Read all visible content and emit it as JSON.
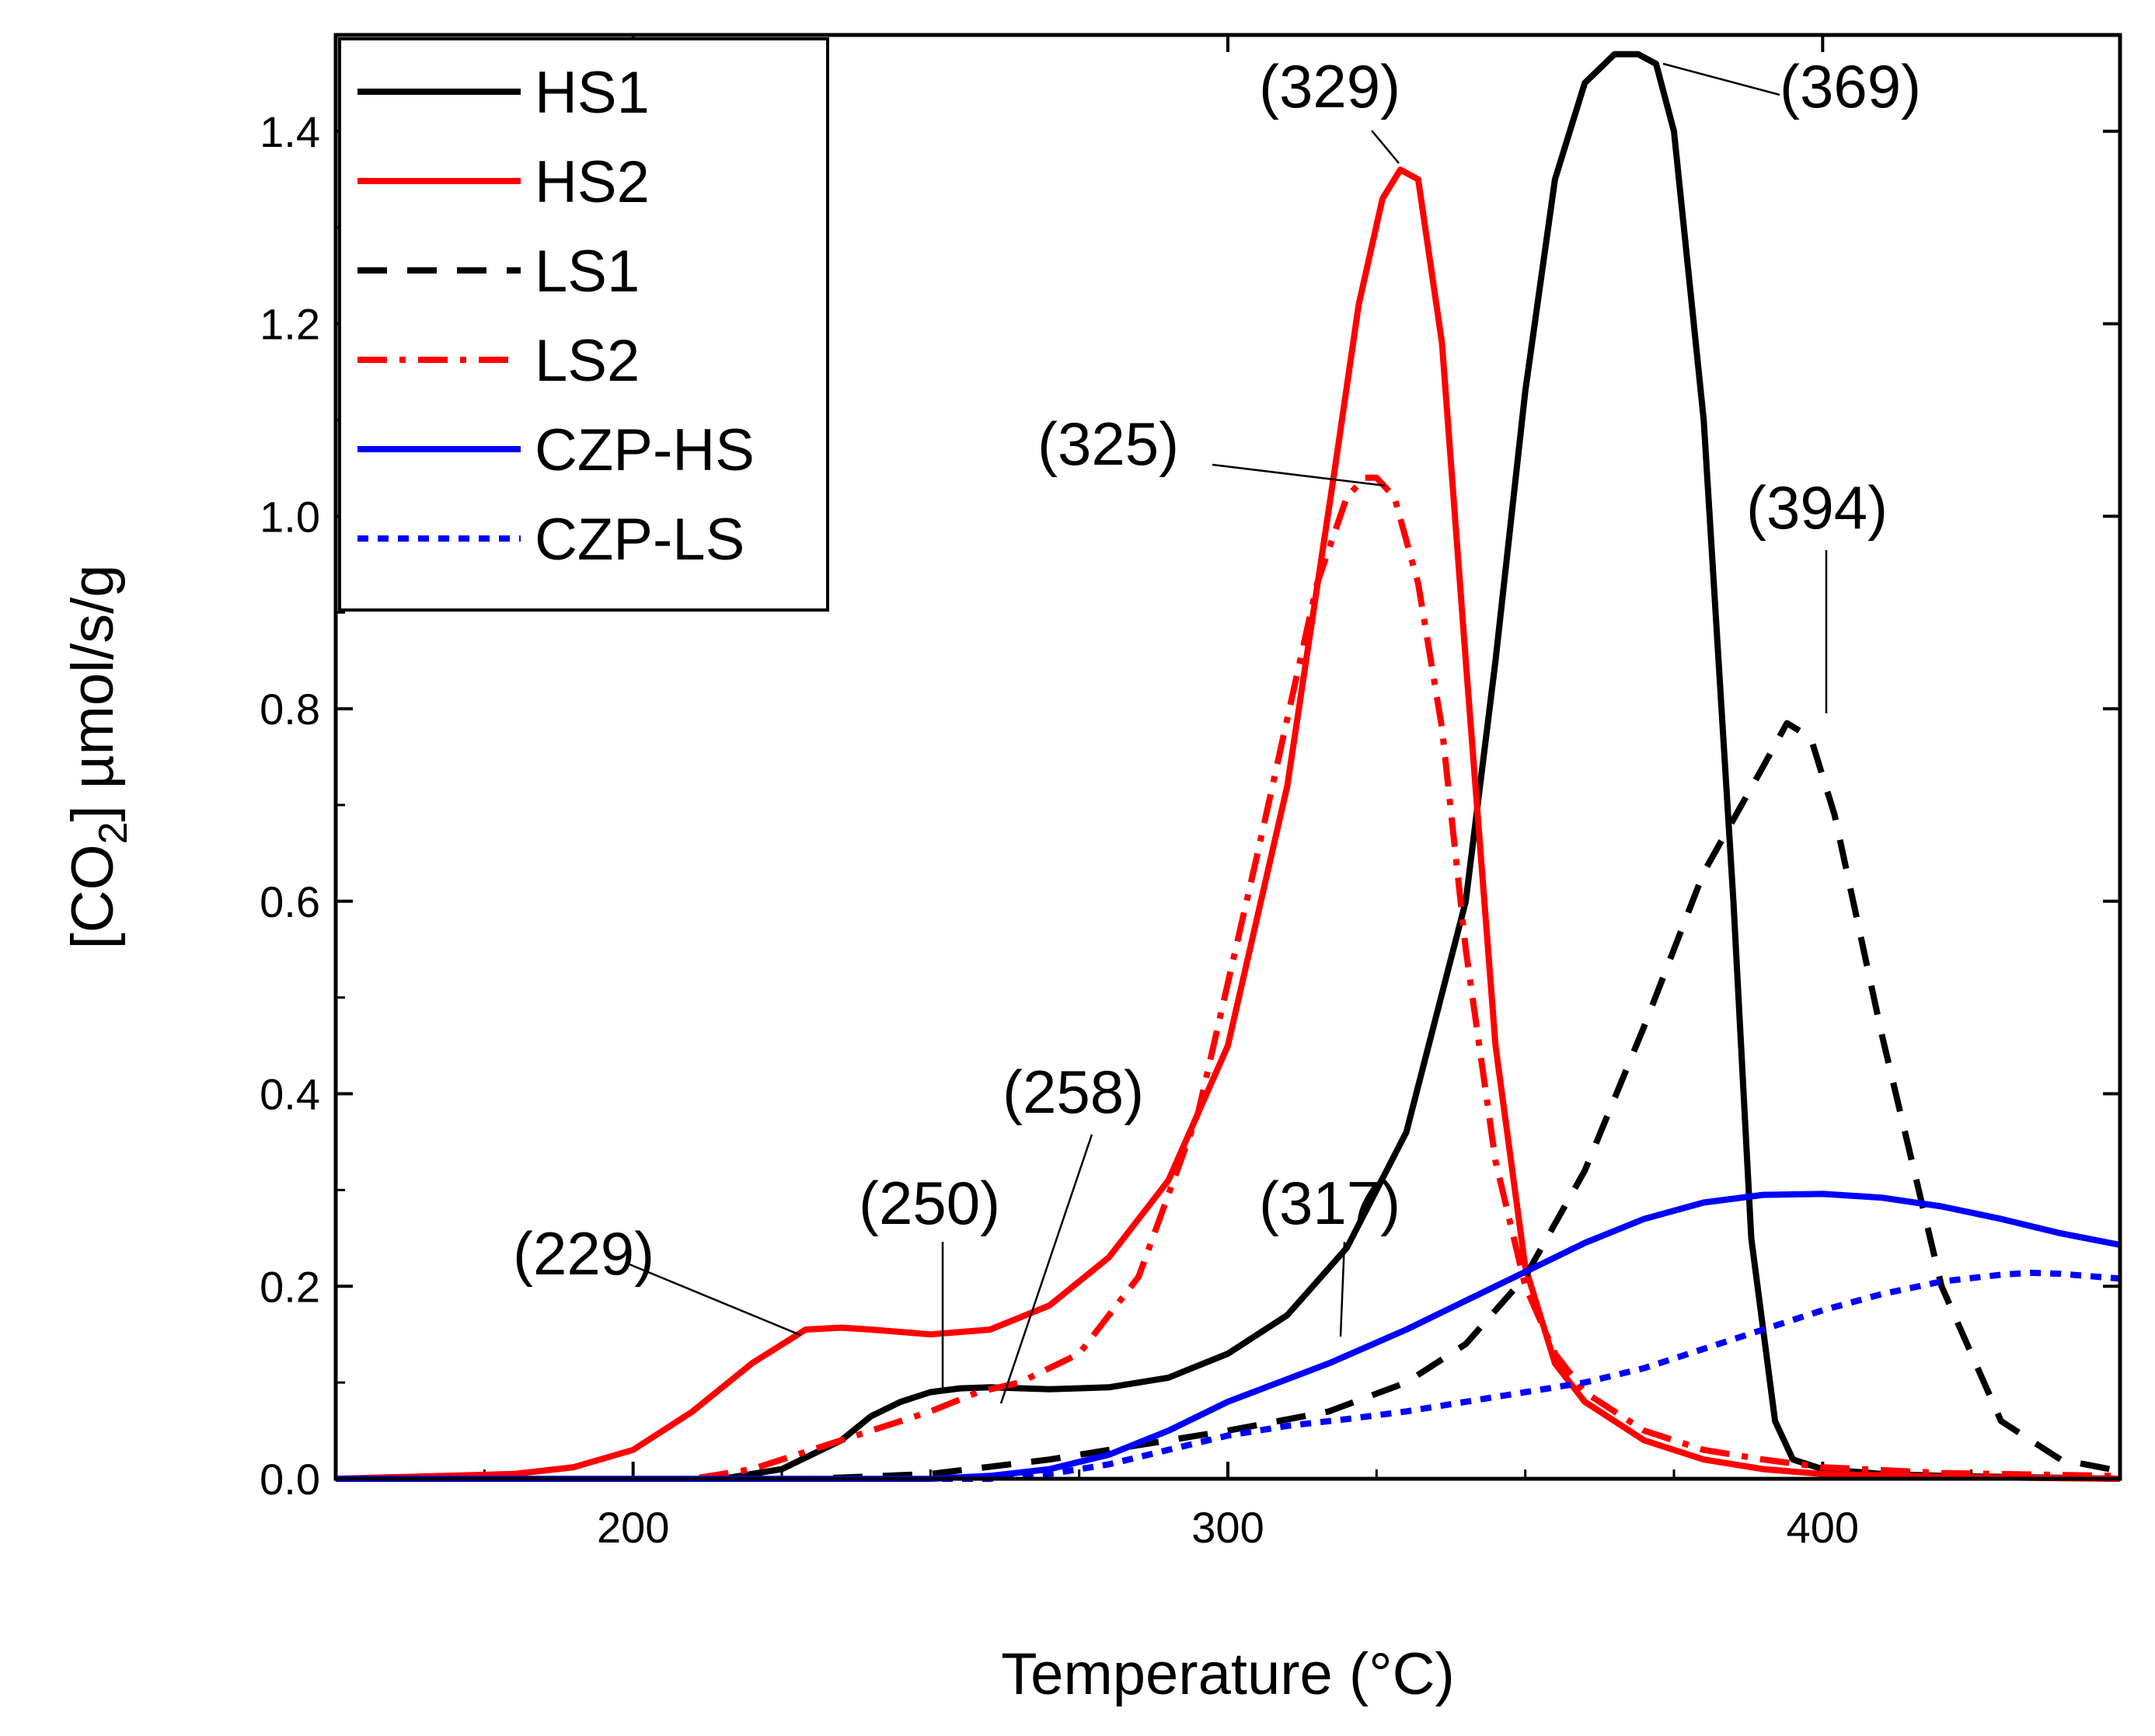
{
  "chart_data": {
    "type": "line",
    "xlabel": "Temperature (°C)",
    "ylabel": {
      "prefix": "[CO",
      "sub": "2",
      "suffix": "] µmol/s/g"
    },
    "xlim": [
      150,
      450
    ],
    "ylim": [
      0,
      1.5
    ],
    "x_ticks": [
      200,
      300,
      400
    ],
    "x_tick_labels": [
      "200",
      "300",
      "400"
    ],
    "y_ticks": [
      0,
      0.2,
      0.4,
      0.6,
      0.8,
      1.0,
      1.2,
      1.4
    ],
    "y_tick_labels": [
      "0.0",
      "0.2",
      "0.4",
      "0.6",
      "0.8",
      "1.0",
      "1.2",
      "1.4"
    ],
    "legend_position": "top-left",
    "series": [
      {
        "name": "HS1",
        "color": "#000000",
        "dash": "solid",
        "x": [
          150,
          215,
          225,
          235,
          240,
          245,
          250,
          255,
          260,
          270,
          280,
          290,
          300,
          310,
          320,
          330,
          340,
          345,
          350,
          355,
          360,
          365,
          369,
          372,
          375,
          380,
          385,
          388,
          392,
          395,
          400,
          410,
          420,
          450
        ],
        "y": [
          0,
          0,
          0.01,
          0.04,
          0.065,
          0.08,
          0.09,
          0.094,
          0.095,
          0.093,
          0.095,
          0.105,
          0.13,
          0.17,
          0.24,
          0.36,
          0.6,
          0.85,
          1.13,
          1.35,
          1.45,
          1.48,
          1.48,
          1.47,
          1.4,
          1.1,
          0.6,
          0.25,
          0.06,
          0.02,
          0.01,
          0.005,
          0.003,
          0
        ]
      },
      {
        "name": "HS2",
        "color": "#ff0000",
        "dash": "solid",
        "x": [
          150,
          180,
          190,
          200,
          210,
          220,
          229,
          235,
          240,
          250,
          260,
          270,
          280,
          290,
          300,
          310,
          318,
          322,
          326,
          329,
          332,
          336,
          340,
          345,
          350,
          355,
          360,
          370,
          380,
          390,
          400,
          420,
          450
        ],
        "y": [
          0,
          0.005,
          0.012,
          0.03,
          0.07,
          0.12,
          0.155,
          0.157,
          0.155,
          0.15,
          0.155,
          0.18,
          0.23,
          0.31,
          0.45,
          0.72,
          1.05,
          1.22,
          1.33,
          1.36,
          1.35,
          1.18,
          0.85,
          0.45,
          0.22,
          0.12,
          0.08,
          0.04,
          0.02,
          0.01,
          0.005,
          0.002,
          0
        ]
      },
      {
        "name": "LS1",
        "color": "#000000",
        "dash": "dashed",
        "x": [
          150,
          230,
          250,
          270,
          290,
          300,
          317,
          330,
          340,
          350,
          360,
          370,
          380,
          390,
          394,
          398,
          402,
          410,
          420,
          430,
          440,
          450
        ],
        "y": [
          0,
          0,
          0.005,
          0.02,
          0.04,
          0.05,
          0.07,
          0.1,
          0.14,
          0.21,
          0.32,
          0.47,
          0.63,
          0.74,
          0.785,
          0.77,
          0.69,
          0.46,
          0.2,
          0.06,
          0.02,
          0.008
        ]
      },
      {
        "name": "LS2",
        "color": "#ff0000",
        "dash": "dashdot",
        "x": [
          150,
          210,
          220,
          230,
          240,
          250,
          258,
          265,
          275,
          285,
          295,
          305,
          315,
          320,
          323,
          325,
          328,
          332,
          336,
          340,
          345,
          350,
          355,
          360,
          370,
          380,
          390,
          400,
          420,
          450
        ],
        "y": [
          0,
          0,
          0.01,
          0.03,
          0.05,
          0.07,
          0.09,
          0.1,
          0.13,
          0.21,
          0.38,
          0.65,
          0.93,
          1.02,
          1.04,
          1.04,
          1.02,
          0.93,
          0.78,
          0.55,
          0.33,
          0.2,
          0.13,
          0.09,
          0.05,
          0.03,
          0.02,
          0.012,
          0.006,
          0.003
        ]
      },
      {
        "name": "CZP-HS",
        "color": "#0000ff",
        "dash": "solid",
        "x": [
          150,
          250,
          260,
          270,
          280,
          290,
          300,
          317,
          330,
          340,
          350,
          360,
          370,
          380,
          390,
          400,
          410,
          420,
          430,
          440,
          450
        ],
        "y": [
          0,
          0,
          0.003,
          0.01,
          0.025,
          0.05,
          0.08,
          0.12,
          0.155,
          0.185,
          0.215,
          0.245,
          0.27,
          0.287,
          0.295,
          0.296,
          0.292,
          0.283,
          0.27,
          0.255,
          0.243
        ]
      },
      {
        "name": "CZP-LS",
        "color": "#0000ff",
        "dash": "dotted",
        "x": [
          150,
          260,
          270,
          280,
          290,
          300,
          310,
          320,
          330,
          340,
          350,
          360,
          370,
          380,
          390,
          400,
          410,
          420,
          430,
          435,
          440,
          450
        ],
        "y": [
          0,
          0,
          0.005,
          0.015,
          0.03,
          0.045,
          0.055,
          0.062,
          0.07,
          0.08,
          0.09,
          0.1,
          0.115,
          0.135,
          0.155,
          0.175,
          0.192,
          0.205,
          0.212,
          0.214,
          0.213,
          0.208
        ]
      }
    ],
    "annotations": [
      {
        "text": "(229)",
        "x": 229,
        "y": 0.155
      },
      {
        "text": "(250)",
        "x": 250,
        "y": 0.09
      },
      {
        "text": "(258)",
        "x": 258,
        "y": 0.09
      },
      {
        "text": "(317)",
        "x": 317,
        "y": 0.12
      },
      {
        "text": "(325)",
        "x": 325,
        "y": 1.04
      },
      {
        "text": "(329)",
        "x": 329,
        "y": 1.36
      },
      {
        "text": "(369)",
        "x": 369,
        "y": 1.48
      },
      {
        "text": "(394)",
        "x": 394,
        "y": 0.785
      }
    ]
  }
}
